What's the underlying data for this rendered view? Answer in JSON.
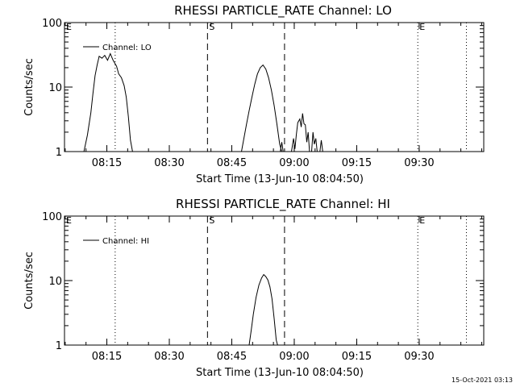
{
  "footer": {
    "timestamp": "15-Oct-2021 03:13"
  },
  "chart_data": [
    {
      "type": "line",
      "title": "RHESSI PARTICLE_RATE Channel: LO",
      "xlabel": "Start Time (13-Jun-10 08:04:50)",
      "ylabel": "Counts/sec",
      "y_scale": "log",
      "ylim": [
        1,
        100
      ],
      "xlim": [
        "08:04:50",
        "09:45:30"
      ],
      "x_ticks": [
        "08:15",
        "08:30",
        "08:45",
        "09:00",
        "09:15",
        "09:30"
      ],
      "y_ticks": [
        "1",
        "10",
        "100"
      ],
      "legend": {
        "position": "top-left",
        "entries": [
          "Channel: LO"
        ]
      },
      "markers": [
        {
          "label": "E",
          "time": "08:04:50",
          "style": "none"
        },
        {
          "label": "",
          "time": "08:17:00",
          "style": "dotted"
        },
        {
          "label": "S",
          "time": "08:39:10",
          "style": "dashed"
        },
        {
          "label": "",
          "time": "08:57:40",
          "style": "dashed"
        },
        {
          "label": "E",
          "time": "09:29:40",
          "style": "dotted"
        },
        {
          "label": "",
          "time": "09:41:20",
          "style": "dotted"
        }
      ],
      "series": [
        {
          "name": "Channel: LO",
          "segments": [
            [
              [
                "08:09:30",
                1
              ],
              [
                "08:10:20",
                1.8
              ],
              [
                "08:11:10",
                4
              ],
              [
                "08:11:40",
                8
              ],
              [
                "08:12:10",
                15
              ],
              [
                "08:12:40",
                22
              ],
              [
                "08:13:10",
                30
              ],
              [
                "08:13:50",
                28
              ],
              [
                "08:14:30",
                31
              ],
              [
                "08:15:10",
                26
              ],
              [
                "08:15:50",
                33
              ],
              [
                "08:16:30",
                26
              ],
              [
                "08:17:20",
                21
              ],
              [
                "08:17:50",
                16
              ],
              [
                "08:18:30",
                14
              ],
              [
                "08:19:10",
                10.5
              ],
              [
                "08:19:40",
                7
              ],
              [
                "08:20:10",
                3.5
              ],
              [
                "08:20:40",
                1.5
              ],
              [
                "08:21:10",
                1
              ]
            ],
            [
              [
                "08:47:20",
                1
              ],
              [
                "08:47:50",
                1.5
              ],
              [
                "08:48:30",
                2.6
              ],
              [
                "08:49:10",
                4.3
              ],
              [
                "08:49:50",
                7
              ],
              [
                "08:50:30",
                11
              ],
              [
                "08:51:10",
                16
              ],
              [
                "08:51:50",
                20
              ],
              [
                "08:52:30",
                22
              ],
              [
                "08:53:10",
                19
              ],
              [
                "08:53:50",
                14
              ],
              [
                "08:54:30",
                9
              ],
              [
                "08:55:10",
                5.2
              ],
              [
                "08:55:50",
                2.7
              ],
              [
                "08:56:30",
                1.3
              ],
              [
                "08:57:00",
                1
              ]
            ],
            [
              [
                "08:56:40",
                1
              ],
              [
                "08:57:00",
                1.4
              ],
              [
                "08:57:20",
                1
              ]
            ],
            [
              [
                "08:59:20",
                1
              ],
              [
                "08:59:50",
                1.6
              ],
              [
                "09:00:10",
                1.1
              ],
              [
                "09:00:30",
                1.8
              ],
              [
                "09:00:50",
                2.8
              ],
              [
                "09:01:20",
                3.2
              ],
              [
                "09:01:40",
                2.4
              ],
              [
                "09:02:00",
                3.9
              ],
              [
                "09:02:20",
                2.7
              ],
              [
                "09:02:40",
                2.6
              ],
              [
                "09:03:00",
                1.4
              ],
              [
                "09:03:20",
                2.0
              ],
              [
                "09:03:40",
                1
              ]
            ],
            [
              [
                "09:04:10",
                1
              ],
              [
                "09:04:30",
                2.0
              ],
              [
                "09:04:50",
                1.3
              ],
              [
                "09:05:10",
                1.6
              ],
              [
                "09:05:30",
                1
              ]
            ],
            [
              [
                "09:06:10",
                1
              ],
              [
                "09:06:30",
                1.5
              ],
              [
                "09:06:50",
                1
              ]
            ]
          ]
        }
      ]
    },
    {
      "type": "line",
      "title": "RHESSI PARTICLE_RATE Channel: HI",
      "xlabel": "Start Time (13-Jun-10 08:04:50)",
      "ylabel": "Counts/sec",
      "y_scale": "log",
      "ylim": [
        1,
        100
      ],
      "xlim": [
        "08:04:50",
        "09:45:30"
      ],
      "x_ticks": [
        "08:15",
        "08:30",
        "08:45",
        "09:00",
        "09:15",
        "09:30"
      ],
      "y_ticks": [
        "1",
        "10",
        "100"
      ],
      "legend": {
        "position": "top-left",
        "entries": [
          "Channel: HI"
        ]
      },
      "markers": [
        {
          "label": "E",
          "time": "08:04:50",
          "style": "none"
        },
        {
          "label": "",
          "time": "08:17:00",
          "style": "dotted"
        },
        {
          "label": "S",
          "time": "08:39:10",
          "style": "dashed"
        },
        {
          "label": "",
          "time": "08:57:40",
          "style": "dashed"
        },
        {
          "label": "E",
          "time": "09:29:40",
          "style": "dotted"
        },
        {
          "label": "",
          "time": "09:41:20",
          "style": "dotted"
        }
      ],
      "series": [
        {
          "name": "Channel: HI",
          "segments": [
            [
              [
                "08:49:10",
                1
              ],
              [
                "08:49:40",
                1.7
              ],
              [
                "08:50:10",
                3
              ],
              [
                "08:50:50",
                5.5
              ],
              [
                "08:51:30",
                8.5
              ],
              [
                "08:52:10",
                11
              ],
              [
                "08:52:40",
                12.4
              ],
              [
                "08:53:10",
                11.5
              ],
              [
                "08:53:40",
                10.2
              ],
              [
                "08:54:10",
                8
              ],
              [
                "08:54:40",
                5.2
              ],
              [
                "08:55:10",
                2.6
              ],
              [
                "08:55:40",
                1.2
              ],
              [
                "08:56:00",
                1
              ]
            ]
          ]
        }
      ]
    }
  ]
}
